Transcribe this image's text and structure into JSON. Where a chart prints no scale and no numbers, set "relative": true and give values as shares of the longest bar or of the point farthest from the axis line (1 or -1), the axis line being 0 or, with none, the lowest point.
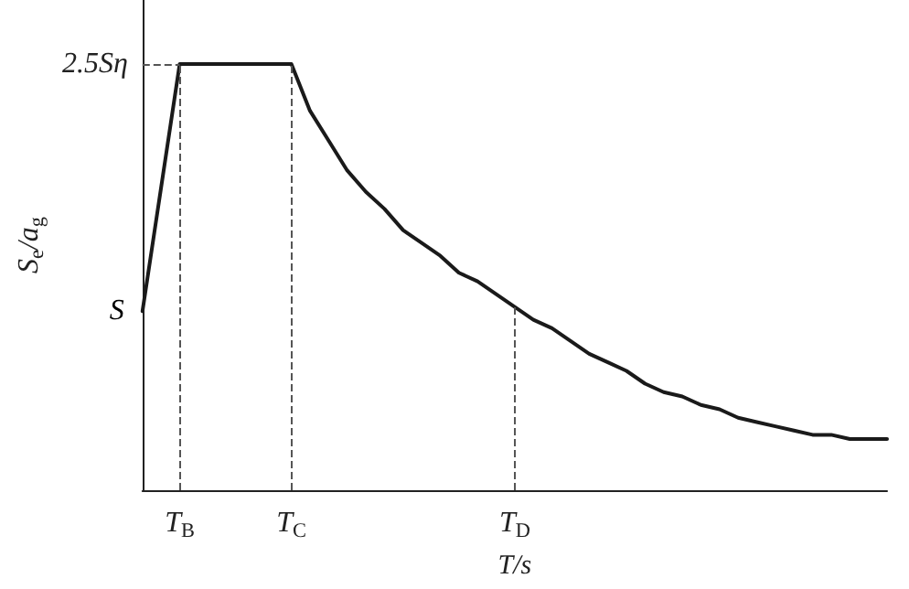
{
  "chart_data": {
    "type": "line",
    "xlabel": "T/s",
    "ylabel": "S$_{e}$/a$_{g}$",
    "relative": true,
    "categories": [
      null,
      null,
      "T$_{B}$",
      null,
      null,
      null,
      null,
      null,
      "T$_{C}$",
      null,
      null,
      null,
      null,
      null,
      null,
      null,
      null,
      null,
      null,
      null,
      "T$_{D}$",
      null,
      null,
      null,
      null,
      null,
      null,
      null,
      null,
      null,
      null,
      null,
      null,
      null,
      null,
      null,
      null,
      null,
      null,
      null,
      null
    ],
    "series": [
      {
        "color": "#1a1a1a",
        "values": [
          0.42,
          0.71,
          1,
          1,
          1,
          1,
          1,
          1,
          1,
          0.89,
          0.82,
          0.75,
          0.7,
          0.66,
          0.61,
          0.58,
          0.55,
          0.51,
          0.49,
          0.46,
          0.43,
          0.4,
          0.38,
          0.35,
          0.32,
          0.3,
          0.28,
          0.25,
          0.23,
          0.22,
          0.2,
          0.19,
          0.17,
          0.16,
          0.15,
          0.14,
          0.13,
          0.13,
          0.12,
          0.12,
          0.12
        ]
      }
    ],
    "annotations": [
      "S"
    ],
    "ref_lines": [
      {
        "axis": "x",
        "value": "T$_{B}$",
        "color": "#555555",
        "line_style": "dashed"
      },
      {
        "axis": "x",
        "value": "T$_{C}$",
        "color": "#555555",
        "line_style": "dashed"
      },
      {
        "axis": "x",
        "value": "T$_{D}$",
        "color": "#555555",
        "line_style": "dashed"
      },
      {
        "axis": "y",
        "value": 1,
        "label": "2.5Sη",
        "color": "#555555",
        "line_style": "dashed"
      }
    ],
    "grid": false,
    "marker": "none",
    "line_style": "solid"
  }
}
